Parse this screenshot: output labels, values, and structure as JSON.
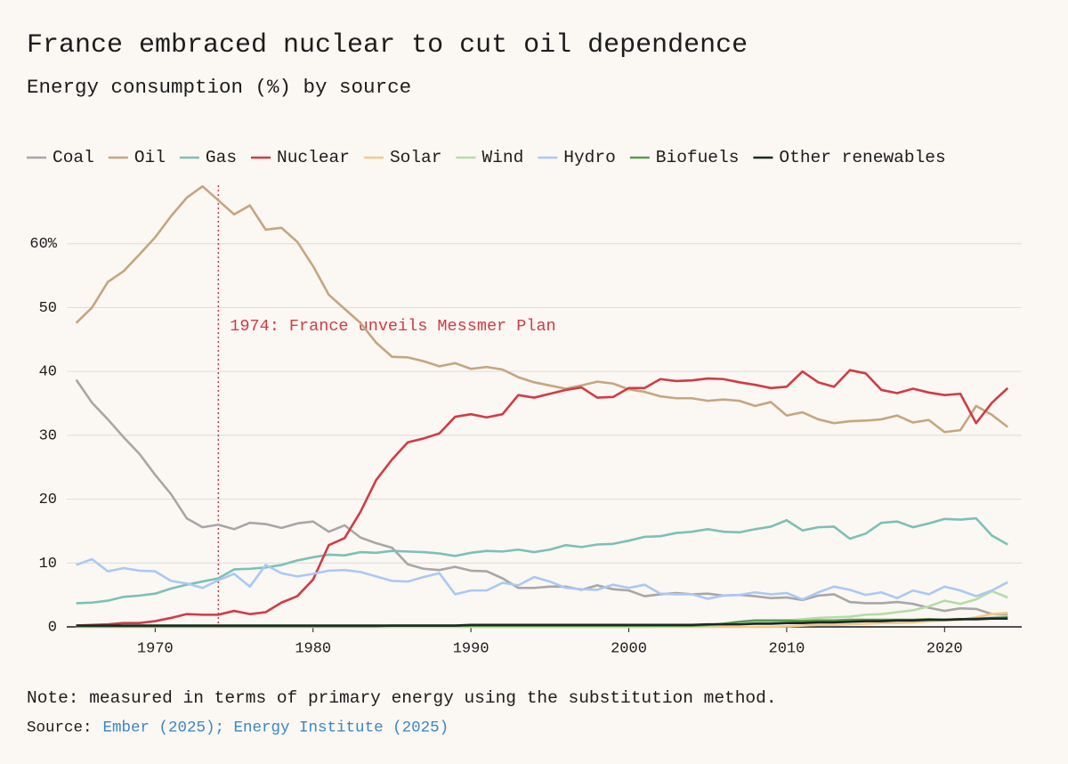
{
  "chart_data": {
    "type": "line",
    "title": "France embraced nuclear to cut oil dependence",
    "subtitle": "Energy consumption (%) by source",
    "note": "Note: measured in terms of primary energy using the substitution method.",
    "source_label": "Source:",
    "source_text": "Ember (2025); Energy Institute (2025)",
    "annotation": {
      "text": "1974: France unveils Messmer Plan",
      "x": 1974,
      "color": "#d23b45"
    },
    "x": [
      1965,
      1966,
      1967,
      1968,
      1969,
      1970,
      1971,
      1972,
      1973,
      1974,
      1975,
      1976,
      1977,
      1978,
      1979,
      1980,
      1981,
      1982,
      1983,
      1984,
      1985,
      1986,
      1987,
      1988,
      1989,
      1990,
      1991,
      1992,
      1993,
      1994,
      1995,
      1996,
      1997,
      1998,
      1999,
      2000,
      2001,
      2002,
      2003,
      2004,
      2005,
      2006,
      2007,
      2008,
      2009,
      2010,
      2011,
      2012,
      2013,
      2014,
      2015,
      2016,
      2017,
      2018,
      2019,
      2020,
      2021,
      2022,
      2023,
      2024
    ],
    "xlim": [
      1964.4,
      2025
    ],
    "xticks": [
      1970,
      1980,
      1990,
      2000,
      2010,
      2020
    ],
    "ylim": [
      0,
      70
    ],
    "yticks": [
      0,
      10,
      20,
      30,
      40,
      50,
      {
        "value": 60,
        "label": "60%"
      }
    ],
    "grid": true,
    "legend": "top",
    "series": [
      {
        "name": "Coal",
        "color": "#a9a6a8",
        "values": [
          38.7,
          35.1,
          32.5,
          29.7,
          27.1,
          23.8,
          20.8,
          17,
          15.6,
          16,
          15.3,
          16.3,
          16.1,
          15.5,
          16.2,
          16.5,
          14.9,
          15.9,
          14,
          13.1,
          12.4,
          9.8,
          9.1,
          8.9,
          9.4,
          8.8,
          8.7,
          7.6,
          6.1,
          6.1,
          6.3,
          6.3,
          5.8,
          6.5,
          5.9,
          5.7,
          4.8,
          5.1,
          5.3,
          5.1,
          5.2,
          4.9,
          5,
          4.8,
          4.5,
          4.6,
          4.2,
          4.9,
          5.1,
          3.9,
          3.7,
          3.7,
          3.9,
          3.6,
          3,
          2.5,
          2.9,
          2.8,
          2,
          1.9
        ]
      },
      {
        "name": "Oil",
        "color": "#c4a77f",
        "values": [
          47.6,
          50,
          54,
          55.7,
          58.3,
          61,
          64.3,
          67.2,
          69,
          66.8,
          64.6,
          66,
          62.2,
          62.5,
          60.3,
          56.5,
          52,
          49.8,
          47.6,
          44.5,
          42.3,
          42.2,
          41.6,
          40.8,
          41.3,
          40.4,
          40.7,
          40.3,
          39.1,
          38.3,
          37.8,
          37.3,
          37.8,
          38.4,
          38.1,
          37.2,
          36.8,
          36.1,
          35.8,
          35.8,
          35.4,
          35.6,
          35.4,
          34.6,
          35.2,
          33.1,
          33.6,
          32.5,
          31.9,
          32.2,
          32.3,
          32.5,
          33.1,
          32,
          32.4,
          30.5,
          30.8,
          34.6,
          33.2,
          31.3
        ]
      },
      {
        "name": "Gas",
        "color": "#7cc0b8",
        "values": [
          3.7,
          3.8,
          4.1,
          4.7,
          4.9,
          5.2,
          6,
          6.6,
          7.1,
          7.6,
          9,
          9.1,
          9.3,
          9.7,
          10.4,
          10.9,
          11.3,
          11.2,
          11.7,
          11.6,
          11.9,
          11.8,
          11.7,
          11.5,
          11.1,
          11.6,
          11.9,
          11.8,
          12.1,
          11.7,
          12.1,
          12.8,
          12.5,
          12.9,
          13,
          13.5,
          14.1,
          14.2,
          14.7,
          14.9,
          15.3,
          14.9,
          14.8,
          15.3,
          15.7,
          16.7,
          15.1,
          15.6,
          15.7,
          13.8,
          14.6,
          16.3,
          16.5,
          15.6,
          16.2,
          16.9,
          16.8,
          17,
          14.3,
          12.9
        ]
      },
      {
        "name": "Nuclear",
        "color": "#d23b45",
        "values": [
          0.2,
          0.3,
          0.4,
          0.6,
          0.6,
          0.9,
          1.4,
          2,
          1.9,
          1.9,
          2.5,
          2,
          2.3,
          3.8,
          4.8,
          7.4,
          12.8,
          13.9,
          18,
          23,
          26.2,
          28.9,
          29.5,
          30.3,
          32.9,
          33.3,
          32.8,
          33.3,
          36.3,
          35.9,
          36.5,
          37.1,
          37.5,
          35.9,
          36,
          37.4,
          37.4,
          38.8,
          38.5,
          38.6,
          38.9,
          38.8,
          38.3,
          37.9,
          37.4,
          37.6,
          40,
          38.3,
          37.6,
          40.2,
          39.7,
          37.1,
          36.6,
          37.3,
          36.7,
          36.3,
          36.5,
          31.9,
          35.1,
          37.4
        ]
      },
      {
        "name": "Solar",
        "color": "#f3c98f",
        "values": [
          0,
          0,
          0,
          0,
          0,
          0,
          0,
          0,
          0,
          0,
          0,
          0,
          0,
          0,
          0,
          0,
          0,
          0,
          0,
          0,
          0,
          0,
          0,
          0,
          0,
          0,
          0,
          0,
          0,
          0,
          0,
          0,
          0,
          0,
          0,
          0,
          0,
          0,
          0,
          0,
          0,
          0,
          0,
          0,
          0,
          0.1,
          0.2,
          0.3,
          0.3,
          0.4,
          0.5,
          0.6,
          0.6,
          0.7,
          0.9,
          1,
          1.1,
          1.5,
          2,
          2.2
        ]
      },
      {
        "name": "Wind",
        "color": "#b5dca6",
        "values": [
          0,
          0,
          0,
          0,
          0,
          0,
          0,
          0,
          0,
          0,
          0,
          0,
          0,
          0,
          0,
          0,
          0,
          0,
          0,
          0,
          0,
          0,
          0,
          0,
          0,
          0,
          0,
          0,
          0,
          0,
          0,
          0,
          0,
          0,
          0,
          0,
          0,
          0.05,
          0.1,
          0.1,
          0.2,
          0.3,
          0.4,
          0.6,
          0.8,
          1,
          1.2,
          1.4,
          1.5,
          1.6,
          1.9,
          2,
          2.3,
          2.6,
          3.2,
          4.1,
          3.6,
          4.3,
          5.6,
          4.6
        ]
      },
      {
        "name": "Hydro",
        "color": "#a9c9f4",
        "values": [
          9.7,
          10.6,
          8.7,
          9.2,
          8.8,
          8.7,
          7.2,
          6.8,
          6.1,
          7.3,
          8.3,
          6.3,
          9.7,
          8.4,
          7.9,
          8.3,
          8.8,
          8.9,
          8.6,
          7.9,
          7.2,
          7.1,
          7.8,
          8.4,
          5.1,
          5.7,
          5.7,
          6.9,
          6.5,
          7.8,
          7.1,
          6.1,
          5.9,
          5.8,
          6.6,
          6.1,
          6.6,
          5.2,
          5.1,
          5.1,
          4.4,
          4.9,
          5,
          5.4,
          5.1,
          5.3,
          4.3,
          5.4,
          6.3,
          5.8,
          5,
          5.4,
          4.5,
          5.7,
          5.1,
          6.3,
          5.7,
          4.8,
          5.7,
          7
        ]
      },
      {
        "name": "Biofuels",
        "color": "#5a9a52",
        "values": [
          0.1,
          0.1,
          0.1,
          0.1,
          0.1,
          0.1,
          0.1,
          0.1,
          0.1,
          0.1,
          0.1,
          0.1,
          0.1,
          0.1,
          0.1,
          0.1,
          0.1,
          0.1,
          0.1,
          0.1,
          0.2,
          0.2,
          0.2,
          0.2,
          0.2,
          0.2,
          0.2,
          0.2,
          0.2,
          0.2,
          0.2,
          0.2,
          0.2,
          0.2,
          0.2,
          0.2,
          0.2,
          0.2,
          0.2,
          0.2,
          0.3,
          0.5,
          0.8,
          1,
          1,
          1,
          0.9,
          1,
          1,
          1.1,
          1.1,
          1.1,
          1.1,
          1.1,
          1.2,
          1.1,
          1.2,
          1.3,
          1.4,
          1.5
        ]
      },
      {
        "name": "Other renewables",
        "color": "#1a2a22",
        "values": [
          0.2,
          0.2,
          0.2,
          0.2,
          0.2,
          0.2,
          0.2,
          0.2,
          0.2,
          0.2,
          0.2,
          0.2,
          0.2,
          0.2,
          0.2,
          0.2,
          0.2,
          0.2,
          0.2,
          0.2,
          0.2,
          0.2,
          0.2,
          0.2,
          0.2,
          0.3,
          0.3,
          0.3,
          0.3,
          0.3,
          0.3,
          0.3,
          0.3,
          0.3,
          0.3,
          0.3,
          0.3,
          0.3,
          0.3,
          0.3,
          0.4,
          0.4,
          0.4,
          0.5,
          0.5,
          0.6,
          0.6,
          0.7,
          0.7,
          0.8,
          0.9,
          0.9,
          1,
          1,
          1.1,
          1.1,
          1.2,
          1.2,
          1.3,
          1.3
        ]
      }
    ]
  }
}
